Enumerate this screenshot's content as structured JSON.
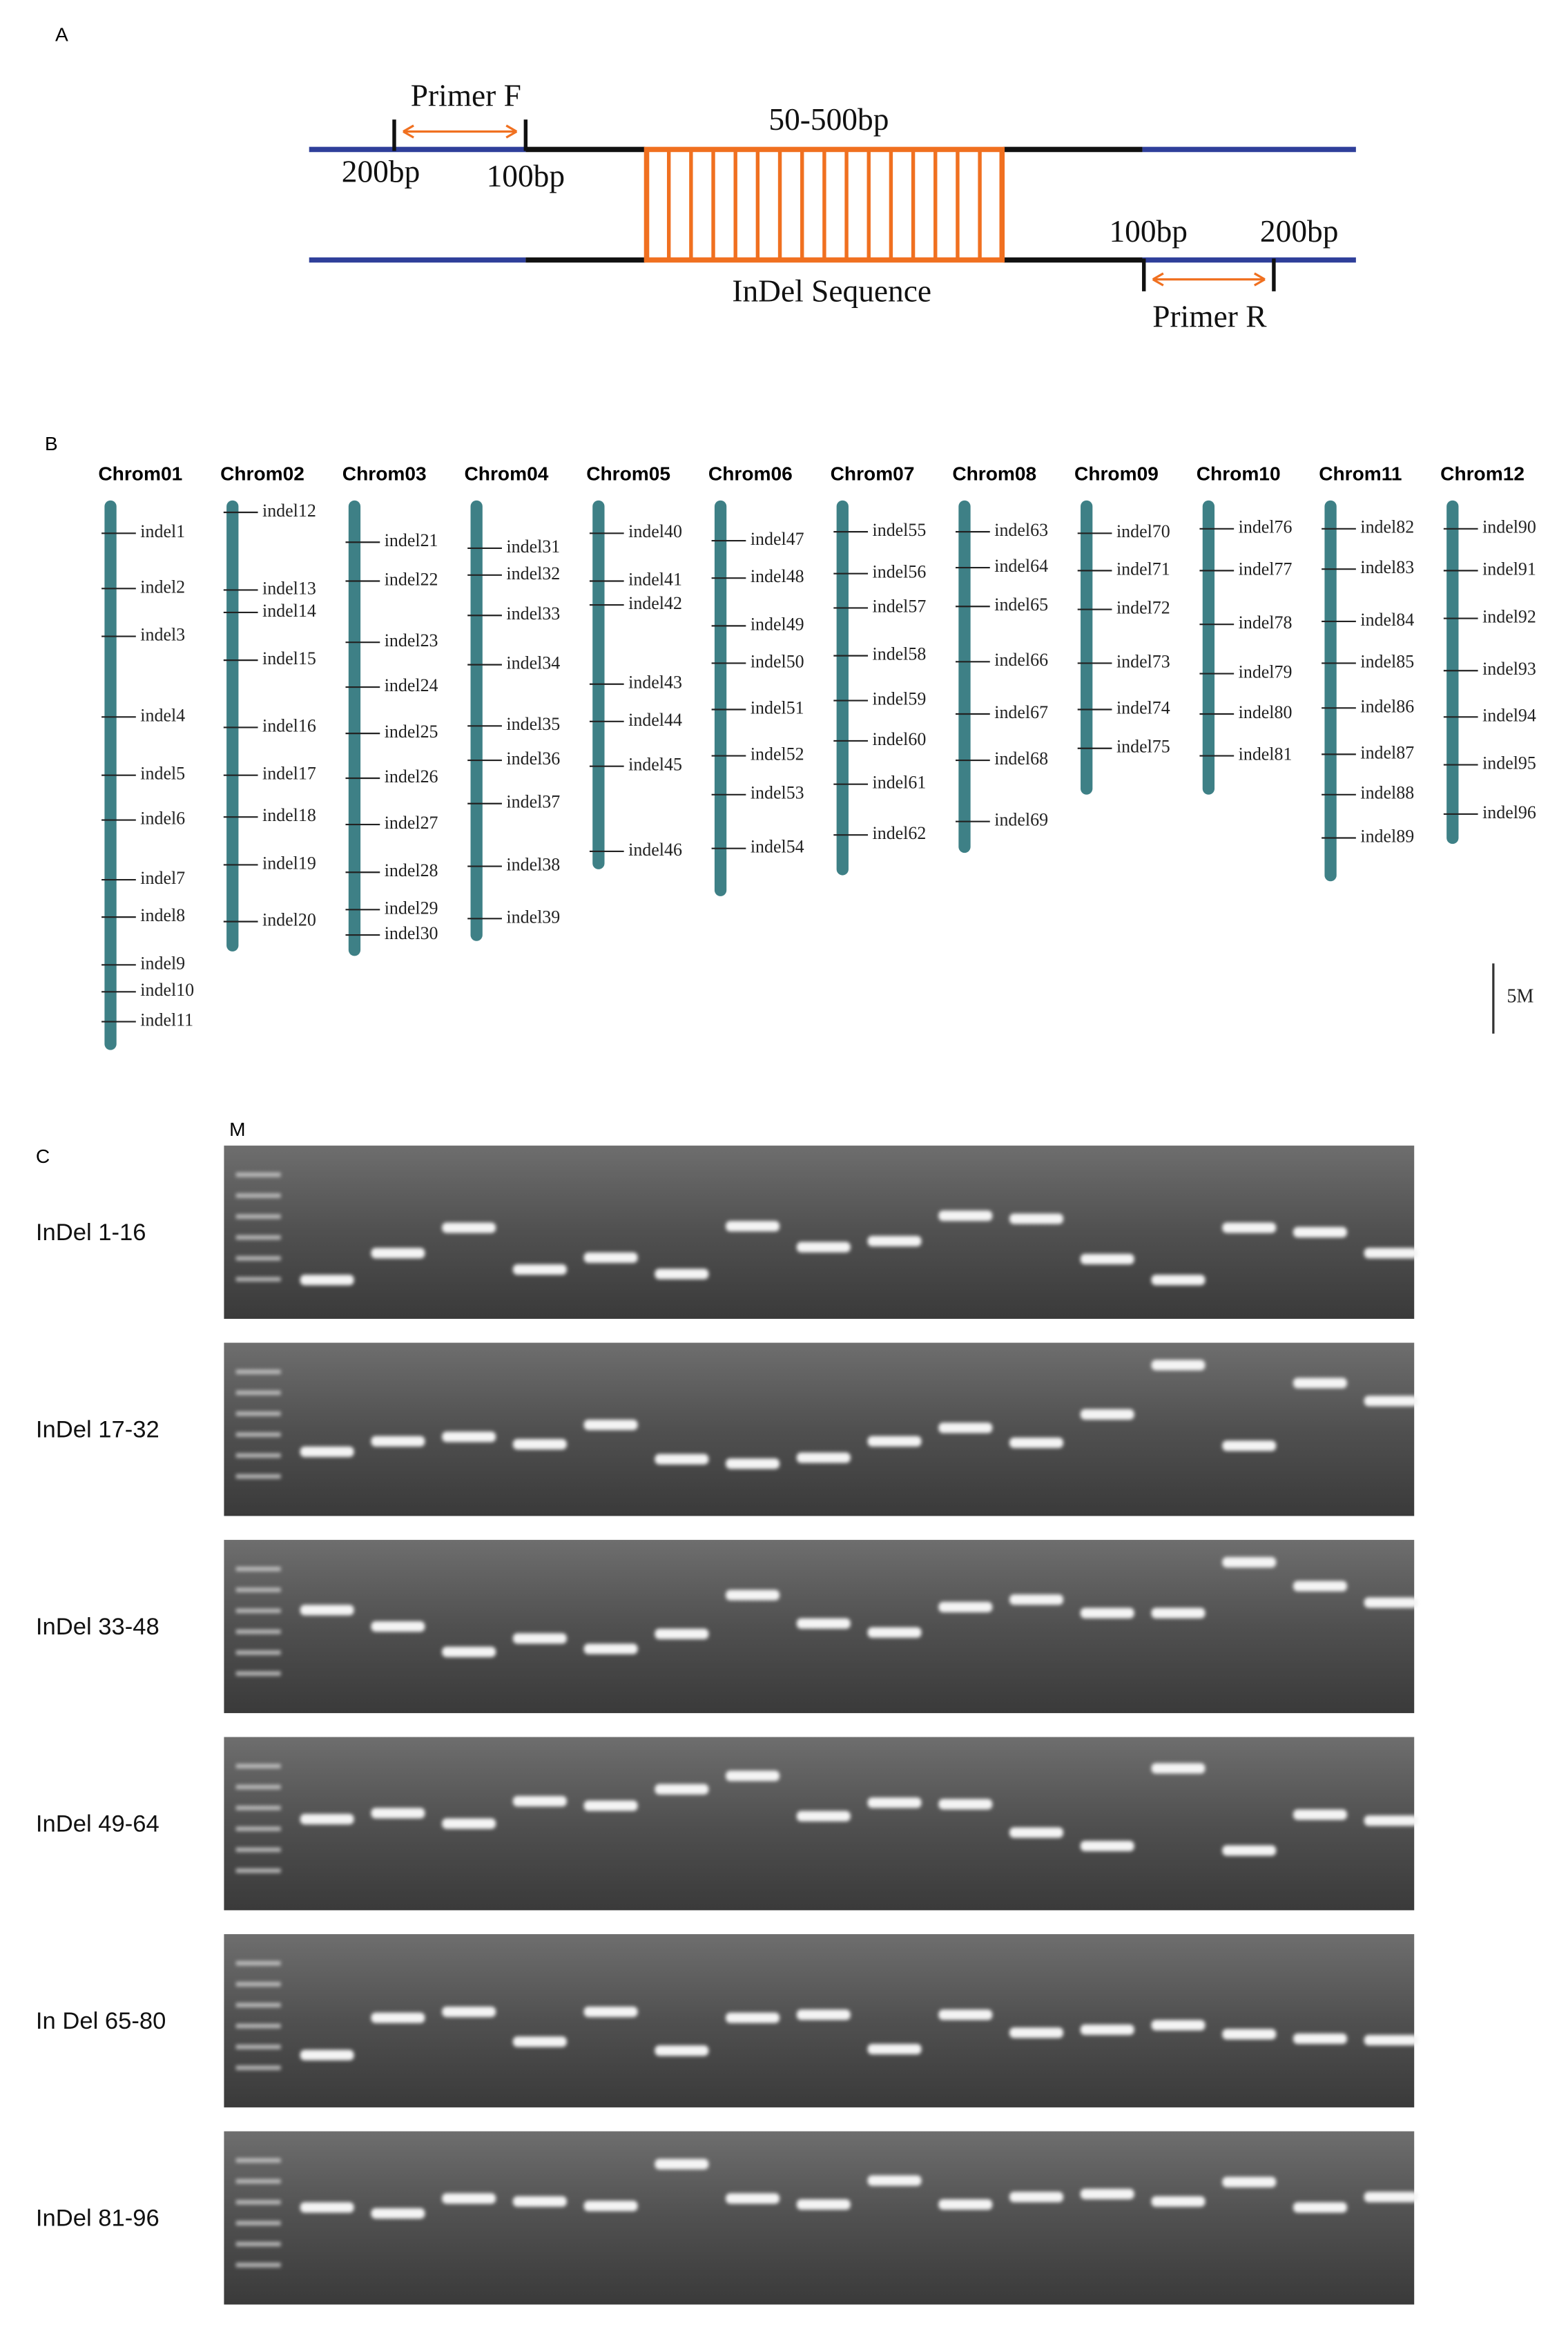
{
  "panel_labels": [
    "A",
    "B",
    "C"
  ],
  "diagram": {
    "primer_f": "Primer F",
    "left_outer": "200bp",
    "left_inner": "100bp",
    "length": "50-500bp",
    "sequence": "InDel Sequence",
    "right_inner": "100bp",
    "right_outer": "200bp",
    "primer_r": "Primer R"
  },
  "map": {
    "chromosomes": [
      {
        "name": "Chrom01",
        "markers": [
          "indel1",
          "indel2",
          "indel3",
          "indel4",
          "indel5",
          "indel6",
          "indel7",
          "indel8",
          "indel9",
          "indel10",
          "indel11"
        ]
      },
      {
        "name": "Chrom02",
        "markers": [
          "indel12",
          "indel13",
          "indel14",
          "indel15",
          "indel16",
          "indel17",
          "indel18",
          "indel19",
          "indel20"
        ]
      },
      {
        "name": "Chrom03",
        "markers": [
          "indel21",
          "indel22",
          "indel23",
          "indel24",
          "indel25",
          "indel26",
          "indel27",
          "indel28",
          "indel29",
          "indel30"
        ]
      },
      {
        "name": "Chrom04",
        "markers": [
          "indel31",
          "indel32",
          "indel33",
          "indel34",
          "indel35",
          "indel36",
          "indel37",
          "indel38",
          "indel39"
        ]
      },
      {
        "name": "Chrom05",
        "markers": [
          "indel40",
          "indel41",
          "indel42",
          "indel43",
          "indel44",
          "indel45",
          "indel46"
        ]
      },
      {
        "name": "Chrom06",
        "markers": [
          "indel47",
          "indel48",
          "indel49",
          "indel50",
          "indel51",
          "indel52",
          "indel53",
          "indel54"
        ]
      },
      {
        "name": "Chrom07",
        "markers": [
          "indel55",
          "indel56",
          "indel57",
          "indel58",
          "indel59",
          "indel60",
          "indel61",
          "indel62"
        ]
      },
      {
        "name": "Chrom08",
        "markers": [
          "indel63",
          "indel64",
          "indel65",
          "indel66",
          "indel67",
          "indel68",
          "indel69"
        ]
      },
      {
        "name": "Chrom09",
        "markers": [
          "indel70",
          "indel71",
          "indel72",
          "indel73",
          "indel74",
          "indel75"
        ]
      },
      {
        "name": "Chrom10",
        "markers": [
          "indel76",
          "indel77",
          "indel78",
          "indel79",
          "indel80",
          "indel81"
        ]
      },
      {
        "name": "Chrom11",
        "markers": [
          "indel82",
          "indel83",
          "indel84",
          "indel85",
          "indel86",
          "indel87",
          "indel88",
          "indel89"
        ]
      },
      {
        "name": "Chrom12",
        "markers": [
          "indel90",
          "indel91",
          "indel92",
          "indel93",
          "indel94",
          "indel95",
          "indel96"
        ]
      }
    ],
    "scale": "5M"
  },
  "gels": {
    "marker": "M",
    "rows": [
      "InDel 1-16",
      "InDel 17-32",
      "InDel 33-48",
      "InDel 49-64",
      "In Del 65-80",
      "InDel 81-96"
    ]
  }
}
